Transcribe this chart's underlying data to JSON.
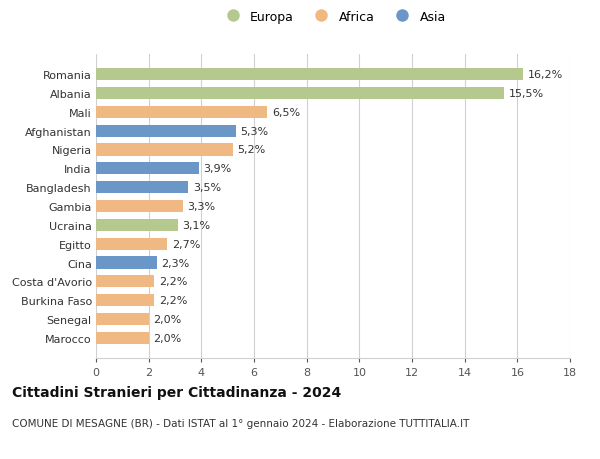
{
  "categories": [
    "Marocco",
    "Senegal",
    "Burkina Faso",
    "Costa d'Avorio",
    "Cina",
    "Egitto",
    "Ucraina",
    "Gambia",
    "Bangladesh",
    "India",
    "Nigeria",
    "Afghanistan",
    "Mali",
    "Albania",
    "Romania"
  ],
  "values": [
    2.0,
    2.0,
    2.2,
    2.2,
    2.3,
    2.7,
    3.1,
    3.3,
    3.5,
    3.9,
    5.2,
    5.3,
    6.5,
    15.5,
    16.2
  ],
  "labels": [
    "2,0%",
    "2,0%",
    "2,2%",
    "2,2%",
    "2,3%",
    "2,7%",
    "3,1%",
    "3,3%",
    "3,5%",
    "3,9%",
    "5,2%",
    "5,3%",
    "6,5%",
    "15,5%",
    "16,2%"
  ],
  "continents": [
    "Africa",
    "Africa",
    "Africa",
    "Africa",
    "Asia",
    "Africa",
    "Europa",
    "Africa",
    "Asia",
    "Asia",
    "Africa",
    "Asia",
    "Africa",
    "Europa",
    "Europa"
  ],
  "colors": {
    "Europa": "#b5c98e",
    "Africa": "#f0b882",
    "Asia": "#6b96c8"
  },
  "legend": [
    "Europa",
    "Africa",
    "Asia"
  ],
  "xlim": [
    0,
    18
  ],
  "xticks": [
    0,
    2,
    4,
    6,
    8,
    10,
    12,
    14,
    16,
    18
  ],
  "title": "Cittadini Stranieri per Cittadinanza - 2024",
  "subtitle": "COMUNE DI MESAGNE (BR) - Dati ISTAT al 1° gennaio 2024 - Elaborazione TUTTITALIA.IT",
  "background_color": "#ffffff",
  "grid_color": "#d0d0d0",
  "bar_height": 0.65,
  "label_fontsize": 8,
  "tick_fontsize": 8,
  "title_fontsize": 10,
  "subtitle_fontsize": 7.5
}
